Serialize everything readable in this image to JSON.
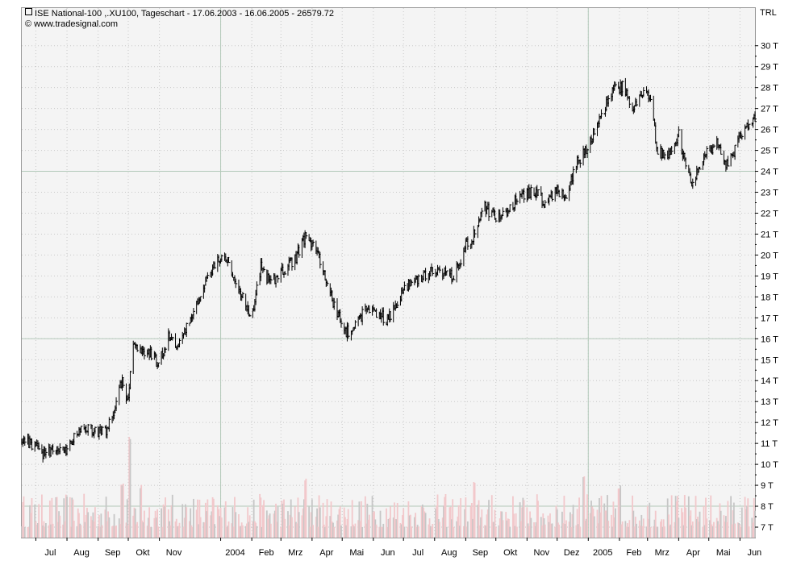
{
  "header": {
    "title": "ISE National-100 ,.XU100, Tageschart - 17.06.2003 - 16.06.2005 - 26579.72",
    "source": "© www.tradesignal.com",
    "currency": "TRL"
  },
  "chart_data": {
    "type": "ohlc-bar",
    "title": "ISE National-100 ,.XU100, Tageschart - 17.06.2003 - 16.06.2005 - 26579.72",
    "y_unit": "TRL",
    "y_axis_position": "right",
    "ylim": [
      6.5,
      31.8
    ],
    "grid": true,
    "y_ticks": [
      "7 T",
      "8 T",
      "9 T",
      "10 T",
      "11 T",
      "12 T",
      "13 T",
      "14 T",
      "15 T",
      "16 T",
      "17 T",
      "18 T",
      "19 T",
      "20 T",
      "21 T",
      "22 T",
      "23 T",
      "24 T",
      "25 T",
      "26 T",
      "27 T",
      "28 T",
      "29 T",
      "30 T"
    ],
    "y_tick_values": [
      7,
      8,
      9,
      10,
      11,
      12,
      13,
      14,
      15,
      16,
      17,
      18,
      19,
      20,
      21,
      22,
      23,
      24,
      25,
      26,
      27,
      28,
      29,
      30
    ],
    "x_ticks": [
      "Jul",
      "Aug",
      "Sep",
      "Okt",
      "Nov",
      "2004",
      "Feb",
      "Mrz",
      "Apr",
      "Mai",
      "Jun",
      "Jul",
      "Aug",
      "Sep",
      "Okt",
      "Nov",
      "Dez",
      "2005",
      "Feb",
      "Mrz",
      "Apr",
      "Mai",
      "Jun"
    ],
    "x_tick_dates": [
      "2003-07-01",
      "2003-08-01",
      "2003-09-01",
      "2003-10-01",
      "2003-11-01",
      "2004-01-01",
      "2004-02-01",
      "2004-03-01",
      "2004-04-01",
      "2004-05-01",
      "2004-06-01",
      "2004-07-01",
      "2004-08-01",
      "2004-09-01",
      "2004-10-01",
      "2004-11-01",
      "2004-12-01",
      "2005-01-01",
      "2005-02-01",
      "2005-03-01",
      "2005-04-01",
      "2005-05-01",
      "2005-06-01"
    ],
    "x_range": [
      "2003-06-17",
      "2005-06-16"
    ],
    "major_grid_dates": [
      "2004-01-01",
      "2005-01-01"
    ],
    "major_grid_values": [
      8,
      16,
      24
    ],
    "last_value": 26579.72,
    "price_series": {
      "name": "ISE National-100",
      "anchors": [
        [
          "2003-06-17",
          11.2
        ],
        [
          "2003-07-01",
          10.8
        ],
        [
          "2003-07-10",
          10.4
        ],
        [
          "2003-07-20",
          10.8
        ],
        [
          "2003-07-31",
          10.5
        ],
        [
          "2003-08-15",
          11.9
        ],
        [
          "2003-08-25",
          11.6
        ],
        [
          "2003-09-10",
          11.6
        ],
        [
          "2003-09-25",
          14.0
        ],
        [
          "2003-10-01",
          13.0
        ],
        [
          "2003-10-05",
          15.7
        ],
        [
          "2003-10-20",
          15.4
        ],
        [
          "2003-10-31",
          14.8
        ],
        [
          "2003-11-10",
          16.1
        ],
        [
          "2003-11-20",
          15.6
        ],
        [
          "2003-12-15",
          18.5
        ],
        [
          "2003-12-29",
          19.8
        ],
        [
          "2004-01-05",
          20.0
        ],
        [
          "2004-01-20",
          18.2
        ],
        [
          "2004-02-01",
          16.9
        ],
        [
          "2004-02-10",
          19.4
        ],
        [
          "2004-02-20",
          18.6
        ],
        [
          "2004-03-01",
          19.2
        ],
        [
          "2004-03-15",
          19.8
        ],
        [
          "2004-03-25",
          20.9
        ],
        [
          "2004-04-05",
          20.3
        ],
        [
          "2004-04-20",
          18.0
        ],
        [
          "2004-05-05",
          16.3
        ],
        [
          "2004-05-15",
          16.7
        ],
        [
          "2004-05-25",
          17.5
        ],
        [
          "2004-06-15",
          16.9
        ],
        [
          "2004-07-01",
          18.4
        ],
        [
          "2004-07-20",
          19.0
        ],
        [
          "2004-08-05",
          19.3
        ],
        [
          "2004-08-20",
          18.9
        ],
        [
          "2004-09-01",
          20.5
        ],
        [
          "2004-09-10",
          21.0
        ],
        [
          "2004-09-20",
          22.3
        ],
        [
          "2004-09-30",
          21.8
        ],
        [
          "2004-10-15",
          22.2
        ],
        [
          "2004-10-25",
          22.9
        ],
        [
          "2004-11-10",
          23.0
        ],
        [
          "2004-11-20",
          22.4
        ],
        [
          "2004-12-01",
          23.2
        ],
        [
          "2004-12-10",
          22.6
        ],
        [
          "2004-12-20",
          24.4
        ],
        [
          "2004-12-31",
          25.1
        ],
        [
          "2005-01-10",
          26.2
        ],
        [
          "2005-01-25",
          27.8
        ],
        [
          "2005-02-05",
          28.1
        ],
        [
          "2005-02-15",
          27.0
        ],
        [
          "2005-02-25",
          28.0
        ],
        [
          "2005-03-05",
          27.4
        ],
        [
          "2005-03-10",
          25.0
        ],
        [
          "2005-03-20",
          24.6
        ],
        [
          "2005-04-01",
          25.8
        ],
        [
          "2005-04-08",
          24.2
        ],
        [
          "2005-04-15",
          23.3
        ],
        [
          "2005-04-25",
          24.6
        ],
        [
          "2005-05-10",
          25.4
        ],
        [
          "2005-05-20",
          24.2
        ],
        [
          "2005-06-01",
          25.6
        ],
        [
          "2005-06-16",
          26.58
        ]
      ]
    },
    "volume_series": {
      "name": "Volume",
      "colors": [
        "#f2c8cb",
        "#c6c6c6"
      ],
      "typical_range": [
        7.0,
        8.6
      ],
      "spikes": [
        [
          "2003-09-25",
          9.2
        ],
        [
          "2003-10-03",
          11.5
        ],
        [
          "2003-10-13",
          9.1
        ],
        [
          "2004-03-26",
          9.4
        ],
        [
          "2004-09-10",
          9.4
        ],
        [
          "2004-12-27",
          9.5
        ],
        [
          "2005-02-01",
          9.1
        ]
      ]
    }
  }
}
